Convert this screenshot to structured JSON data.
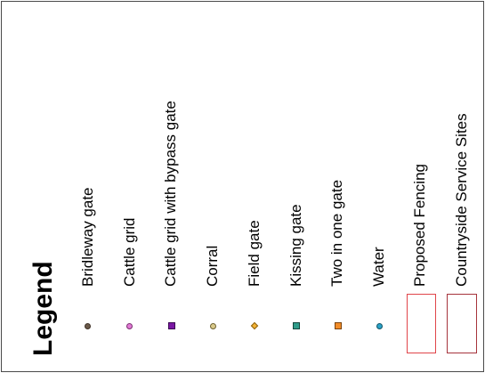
{
  "legend": {
    "title": "Legend",
    "items": [
      {
        "label": "Bridleway gate",
        "icon": "circle-dot-icon",
        "fill": "#6b5a4a",
        "stroke": "#3d3025"
      },
      {
        "label": "Cattle grid",
        "icon": "circle-dot-icon",
        "fill": "#e27ad6",
        "stroke": "#7a2f70"
      },
      {
        "label": "Cattle grid with bypass gate",
        "icon": "square-dot-icon",
        "fill": "#7a16a3",
        "stroke": "#3b0a52"
      },
      {
        "label": "Corral",
        "icon": "circle-dot-icon",
        "fill": "#d9c98a",
        "stroke": "#6e6130"
      },
      {
        "label": "Field gate",
        "icon": "diamond-dot-icon",
        "fill": "#f2b233",
        "stroke": "#8a5e0c"
      },
      {
        "label": "Kissing gate",
        "icon": "square-dot-icon",
        "fill": "#2f9c8a",
        "stroke": "#14463d"
      },
      {
        "label": "Two in one gate",
        "icon": "square-dot-icon",
        "fill": "#f28c28",
        "stroke": "#7a430d"
      },
      {
        "label": "Water",
        "icon": "circle-dot-icon",
        "fill": "#2aa3c9",
        "stroke": "#135466"
      }
    ],
    "areas": [
      {
        "label": "Proposed Fencing",
        "icon": "rectangle-outline-icon",
        "stroke": "#e0454a"
      },
      {
        "label": "Countryside Service Sites",
        "icon": "rectangle-outline-icon",
        "stroke": "#a6343c"
      }
    ]
  }
}
